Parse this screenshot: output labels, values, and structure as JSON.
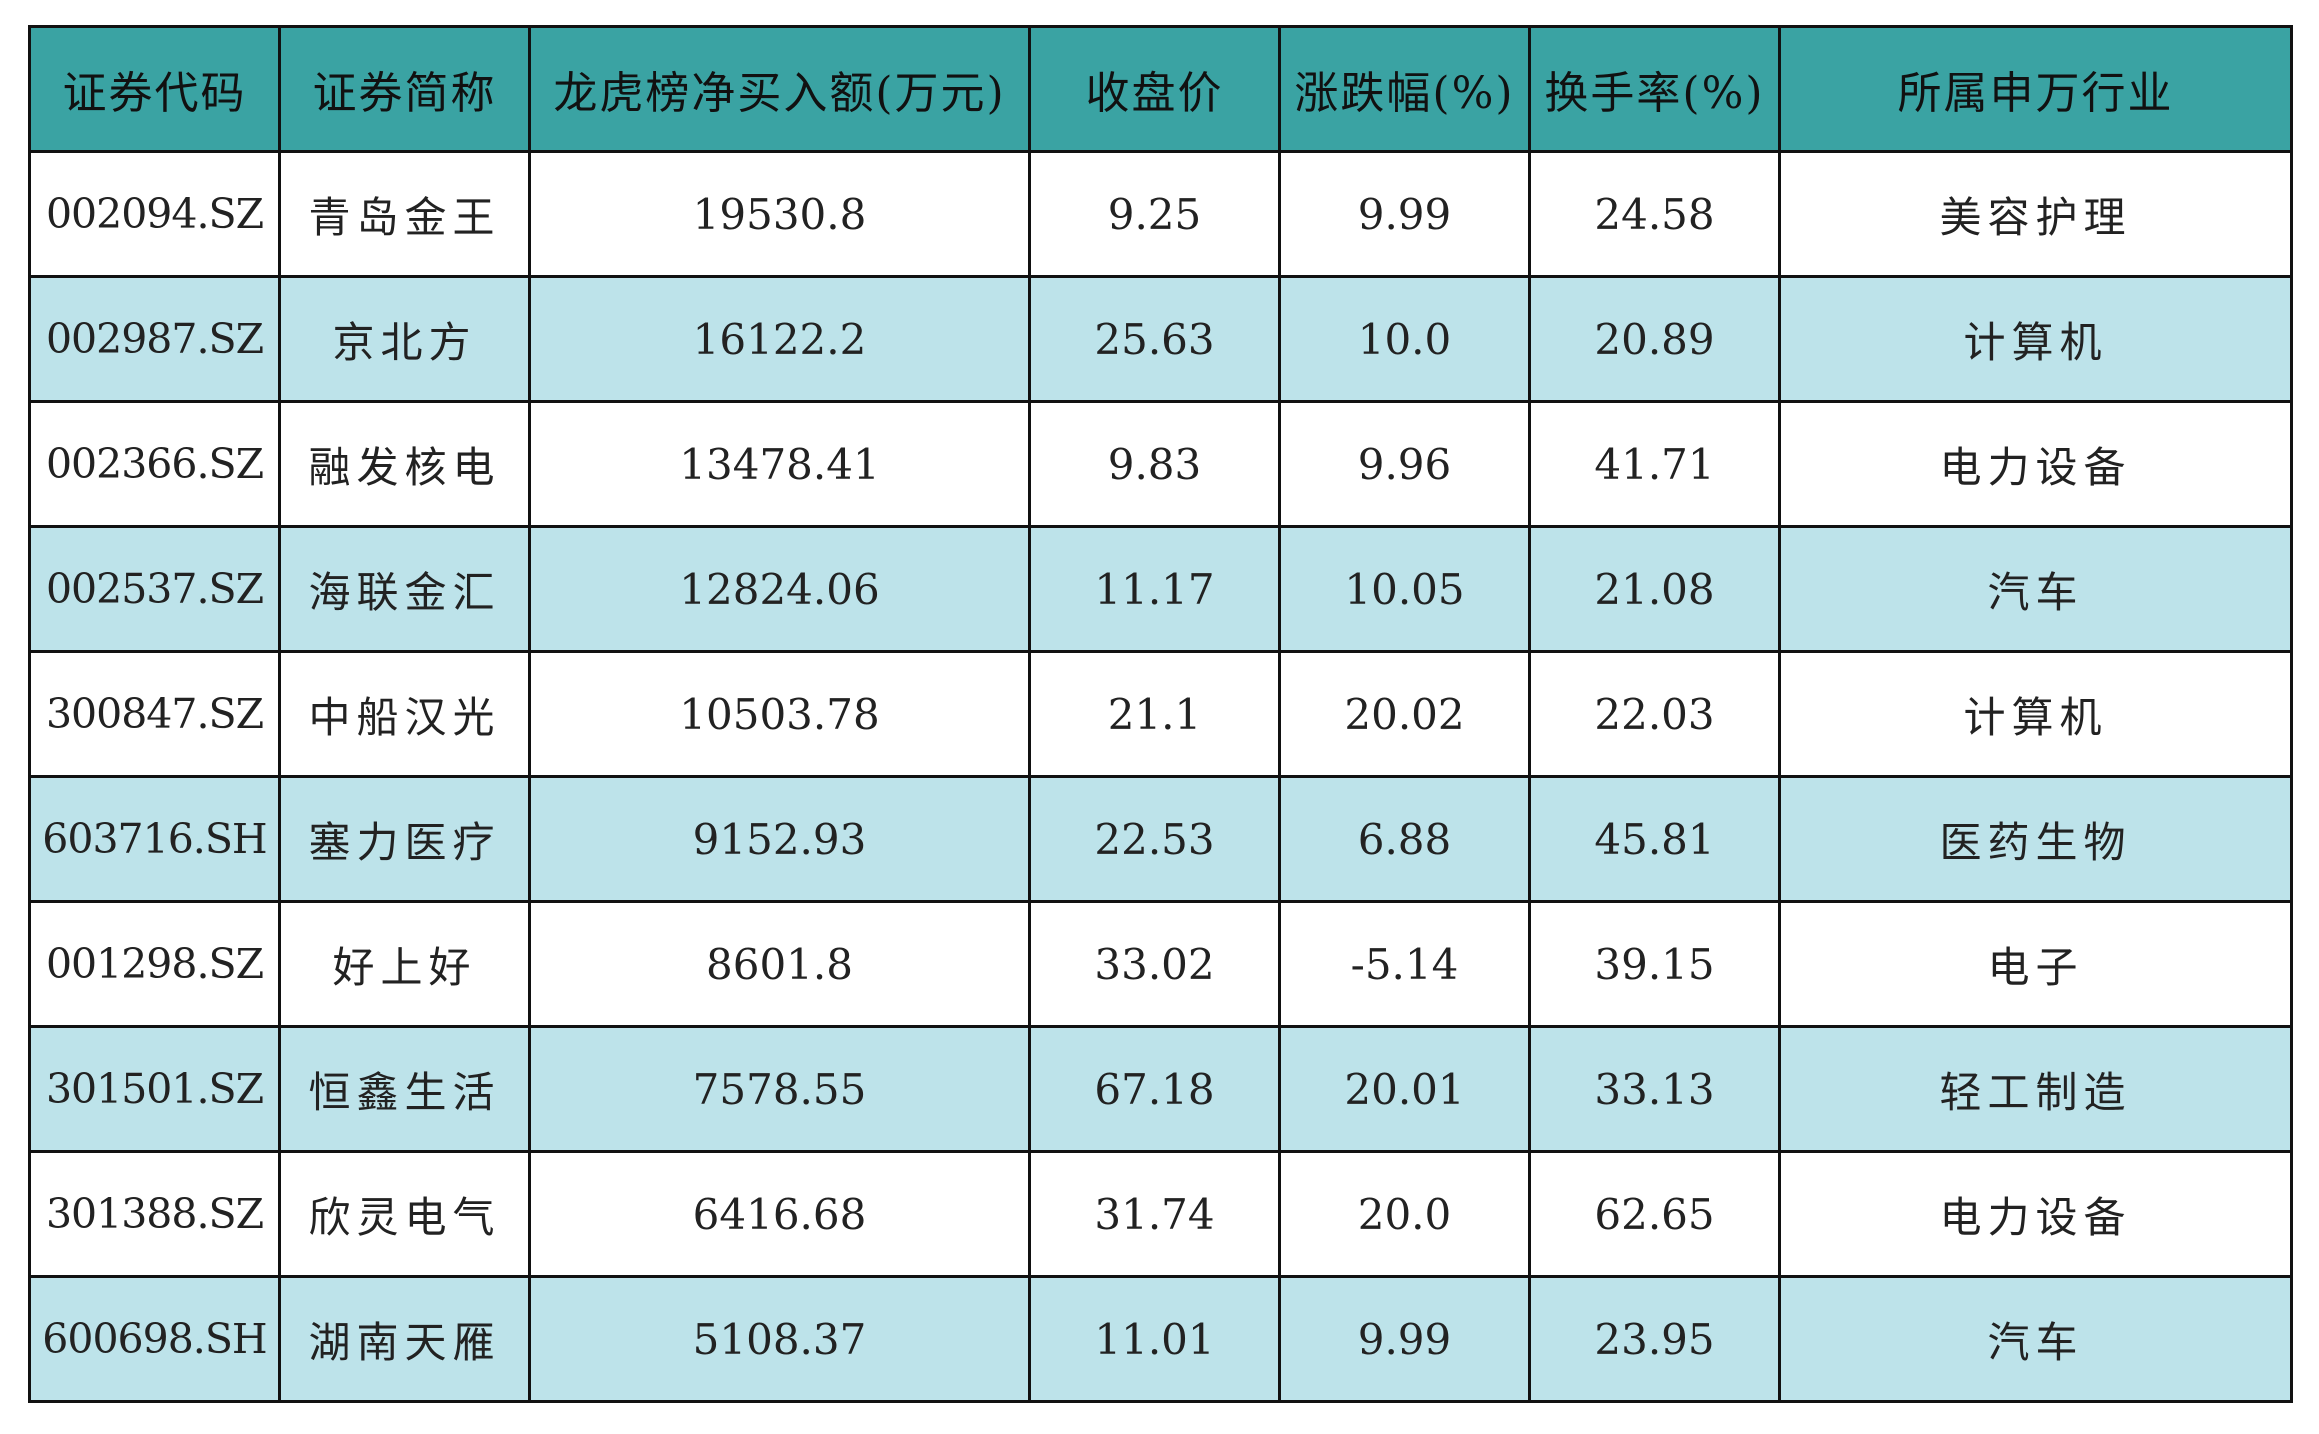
{
  "table": {
    "headers": [
      "证券代码",
      "证券简称",
      "龙虎榜净买入额(万元)",
      "收盘价",
      "涨跌幅(%)",
      "换手率(%)",
      "所属申万行业"
    ],
    "rows": [
      [
        "002094.SZ",
        "青岛金王",
        "19530.8",
        "9.25",
        "9.99",
        "24.58",
        "美容护理"
      ],
      [
        "002987.SZ",
        "京北方",
        "16122.2",
        "25.63",
        "10.0",
        "20.89",
        "计算机"
      ],
      [
        "002366.SZ",
        "融发核电",
        "13478.41",
        "9.83",
        "9.96",
        "41.71",
        "电力设备"
      ],
      [
        "002537.SZ",
        "海联金汇",
        "12824.06",
        "11.17",
        "10.05",
        "21.08",
        "汽车"
      ],
      [
        "300847.SZ",
        "中船汉光",
        "10503.78",
        "21.1",
        "20.02",
        "22.03",
        "计算机"
      ],
      [
        "603716.SH",
        "塞力医疗",
        "9152.93",
        "22.53",
        "6.88",
        "45.81",
        "医药生物"
      ],
      [
        "001298.SZ",
        "好上好",
        "8601.8",
        "33.02",
        "-5.14",
        "39.15",
        "电子"
      ],
      [
        "301501.SZ",
        "恒鑫生活",
        "7578.55",
        "67.18",
        "20.01",
        "33.13",
        "轻工制造"
      ],
      [
        "301388.SZ",
        "欣灵电气",
        "6416.68",
        "31.74",
        "20.0",
        "62.65",
        "电力设备"
      ],
      [
        "600698.SH",
        "湖南天雁",
        "5108.37",
        "11.01",
        "9.99",
        "23.95",
        "汽车"
      ]
    ]
  },
  "colors": {
    "header_bg": "#3aa3a3",
    "row_alt_bg": "#bde3ea",
    "row_bg": "#ffffff",
    "border": "#111111"
  }
}
